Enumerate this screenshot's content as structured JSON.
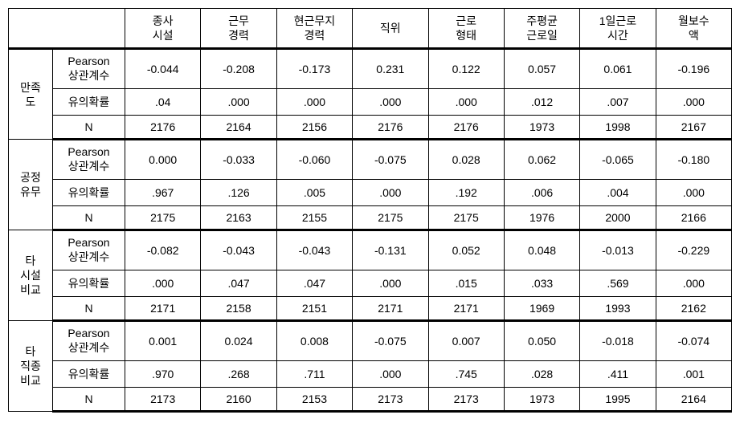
{
  "headers": {
    "blank": "",
    "col1": "종사\n시설",
    "col2": "근무\n경력",
    "col3": "현근무지\n경력",
    "col4": "직위",
    "col5": "근로\n형태",
    "col6": "주평균\n근로일",
    "col7": "1일근로\n시간",
    "col8": "월보수\n액"
  },
  "subLabels": {
    "pearson": "Pearson\n상관계수",
    "sig": "유의확률",
    "n": "N"
  },
  "groups": [
    {
      "label": "만족\n도",
      "rows": {
        "pearson": [
          "-0.044",
          "-0.208",
          "-0.173",
          "0.231",
          "0.122",
          "0.057",
          "0.061",
          "-0.196"
        ],
        "sig": [
          ".04",
          ".000",
          ".000",
          ".000",
          ".000",
          ".012",
          ".007",
          ".000"
        ],
        "n": [
          "2176",
          "2164",
          "2156",
          "2176",
          "2176",
          "1973",
          "1998",
          "2167"
        ]
      }
    },
    {
      "label": "공정\n유무",
      "rows": {
        "pearson": [
          "0.000",
          "-0.033",
          "-0.060",
          "-0.075",
          "0.028",
          "0.062",
          "-0.065",
          "-0.180"
        ],
        "sig": [
          ".967",
          ".126",
          ".005",
          ".000",
          ".192",
          ".006",
          ".004",
          ".000"
        ],
        "n": [
          "2175",
          "2163",
          "2155",
          "2175",
          "2175",
          "1976",
          "2000",
          "2166"
        ]
      }
    },
    {
      "label": "타\n시설\n비교",
      "rows": {
        "pearson": [
          "-0.082",
          "-0.043",
          "-0.043",
          "-0.131",
          "0.052",
          "0.048",
          "-0.013",
          "-0.229"
        ],
        "sig": [
          ".000",
          ".047",
          ".047",
          ".000",
          ".015",
          ".033",
          ".569",
          ".000"
        ],
        "n": [
          "2171",
          "2158",
          "2151",
          "2171",
          "2171",
          "1969",
          "1993",
          "2162"
        ]
      }
    },
    {
      "label": "타\n직종\n비교",
      "rows": {
        "pearson": [
          "0.001",
          "0.024",
          "0.008",
          "-0.075",
          "0.007",
          "0.050",
          "-0.018",
          "-0.074"
        ],
        "sig": [
          ".970",
          ".268",
          ".711",
          ".000",
          ".745",
          ".028",
          ".411",
          ".001"
        ],
        "n": [
          "2173",
          "2160",
          "2153",
          "2173",
          "2173",
          "1973",
          "1995",
          "2164"
        ]
      }
    }
  ]
}
